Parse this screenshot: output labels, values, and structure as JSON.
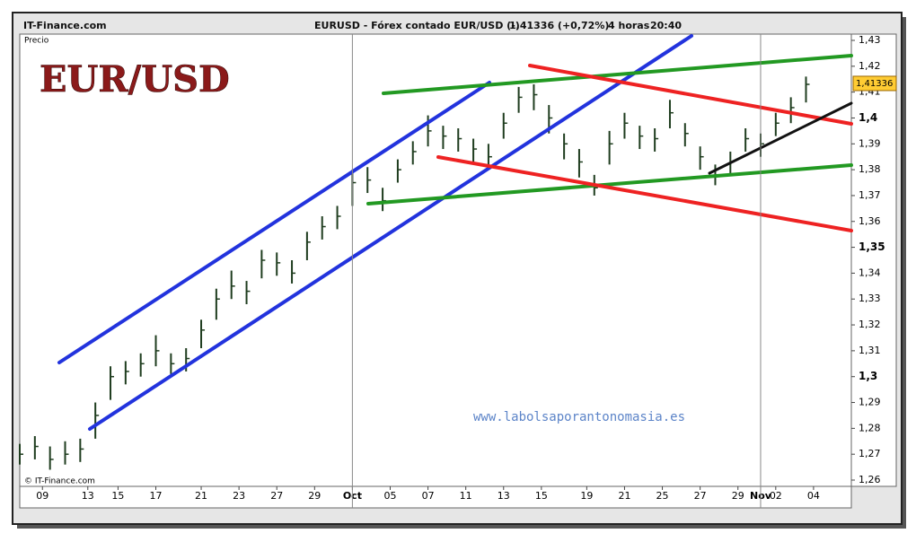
{
  "header": {
    "site": "IT-Finance.com",
    "instrument": "EURUSD - Fórex contado EUR/USD (-)",
    "change": "1,41336 (+0,72%)",
    "interval": "4 horas",
    "time": "20:40"
  },
  "chart_data": {
    "type": "ohlc",
    "title": "EUR/USD",
    "y_label": "Precio",
    "watermark": "www.labolsaporantonomasia.es",
    "copyright": "© IT-Finance.com",
    "bar_color": "#1f3d1f",
    "last_price": {
      "value": 1.41336,
      "label": "1,41336"
    },
    "x": [
      0,
      2,
      4,
      6,
      8,
      10,
      12,
      14,
      16,
      18,
      20,
      22,
      24,
      26,
      28,
      30,
      32,
      34,
      36,
      38,
      40,
      42,
      44,
      46,
      48,
      50,
      52,
      54,
      56,
      58,
      60,
      62,
      64,
      66,
      68,
      70,
      72,
      74,
      76,
      78,
      80,
      82,
      84,
      86,
      88,
      90,
      92,
      94,
      96,
      98,
      100,
      102,
      104
    ],
    "high": [
      1.274,
      1.277,
      1.273,
      1.275,
      1.276,
      1.29,
      1.304,
      1.306,
      1.309,
      1.316,
      1.309,
      1.311,
      1.322,
      1.334,
      1.341,
      1.337,
      1.349,
      1.348,
      1.345,
      1.356,
      1.362,
      1.366,
      1.38,
      1.381,
      1.373,
      1.384,
      1.391,
      1.401,
      1.397,
      1.396,
      1.392,
      1.39,
      1.402,
      1.412,
      1.413,
      1.405,
      1.394,
      1.388,
      1.378,
      1.395,
      1.402,
      1.397,
      1.396,
      1.407,
      1.398,
      1.389,
      1.382,
      1.387,
      1.396,
      1.394,
      1.402,
      1.408,
      1.416
    ],
    "low": [
      1.266,
      1.268,
      1.264,
      1.266,
      1.267,
      1.276,
      1.291,
      1.297,
      1.3,
      1.304,
      1.301,
      1.302,
      1.311,
      1.322,
      1.33,
      1.328,
      1.338,
      1.339,
      1.336,
      1.345,
      1.353,
      1.357,
      1.366,
      1.371,
      1.364,
      1.375,
      1.382,
      1.389,
      1.388,
      1.387,
      1.383,
      1.38,
      1.392,
      1.402,
      1.403,
      1.394,
      1.384,
      1.377,
      1.37,
      1.382,
      1.392,
      1.388,
      1.387,
      1.396,
      1.389,
      1.38,
      1.374,
      1.378,
      1.387,
      1.385,
      1.393,
      1.398,
      1.406
    ],
    "close": [
      1.27,
      1.273,
      1.268,
      1.27,
      1.272,
      1.285,
      1.3,
      1.302,
      1.305,
      1.31,
      1.305,
      1.307,
      1.318,
      1.33,
      1.335,
      1.333,
      1.345,
      1.344,
      1.34,
      1.352,
      1.358,
      1.362,
      1.375,
      1.376,
      1.368,
      1.38,
      1.387,
      1.395,
      1.393,
      1.392,
      1.388,
      1.385,
      1.398,
      1.408,
      1.409,
      1.4,
      1.39,
      1.383,
      1.373,
      1.39,
      1.398,
      1.393,
      1.392,
      1.402,
      1.394,
      1.385,
      1.378,
      1.383,
      1.392,
      1.39,
      1.398,
      1.404,
      1.413
    ],
    "xlim": [
      0,
      110
    ],
    "xticks": [
      {
        "value": 3,
        "label": "09"
      },
      {
        "value": 9,
        "label": "13"
      },
      {
        "value": 13,
        "label": "15"
      },
      {
        "value": 18,
        "label": "17"
      },
      {
        "value": 24,
        "label": "21"
      },
      {
        "value": 29,
        "label": "23"
      },
      {
        "value": 34,
        "label": "27"
      },
      {
        "value": 39,
        "label": "29"
      },
      {
        "value": 44,
        "label": "Oct",
        "bold": true
      },
      {
        "value": 49,
        "label": "05"
      },
      {
        "value": 54,
        "label": "07"
      },
      {
        "value": 59,
        "label": "11"
      },
      {
        "value": 64,
        "label": "13"
      },
      {
        "value": 69,
        "label": "15"
      },
      {
        "value": 75,
        "label": "19"
      },
      {
        "value": 80,
        "label": "21"
      },
      {
        "value": 85,
        "label": "25"
      },
      {
        "value": 90,
        "label": "27"
      },
      {
        "value": 95,
        "label": "29"
      },
      {
        "value": 98,
        "label": "Nov",
        "bold": true
      },
      {
        "value": 100,
        "label": "02"
      },
      {
        "value": 105,
        "label": "04"
      }
    ],
    "ylim": [
      1.26,
      1.43
    ],
    "yticks": [
      {
        "value": 1.43,
        "label": "1,43"
      },
      {
        "value": 1.42,
        "label": "1,42"
      },
      {
        "value": 1.41,
        "label": "1,41"
      },
      {
        "value": 1.4,
        "label": "1,4",
        "bold": true
      },
      {
        "value": 1.39,
        "label": "1,39"
      },
      {
        "value": 1.38,
        "label": "1,38"
      },
      {
        "value": 1.37,
        "label": "1,37"
      },
      {
        "value": 1.36,
        "label": "1,36"
      },
      {
        "value": 1.35,
        "label": "1,35",
        "bold": true
      },
      {
        "value": 1.34,
        "label": "1,34"
      },
      {
        "value": 1.33,
        "label": "1,33"
      },
      {
        "value": 1.32,
        "label": "1,32"
      },
      {
        "value": 1.31,
        "label": "1,31"
      },
      {
        "value": 1.3,
        "label": "1,3",
        "bold": true
      },
      {
        "value": 1.29,
        "label": "1,29"
      },
      {
        "value": 1.28,
        "label": "1,28"
      },
      {
        "value": 1.27,
        "label": "1,27"
      },
      {
        "value": 1.26,
        "label": "1,26"
      }
    ],
    "grid": false
  }
}
